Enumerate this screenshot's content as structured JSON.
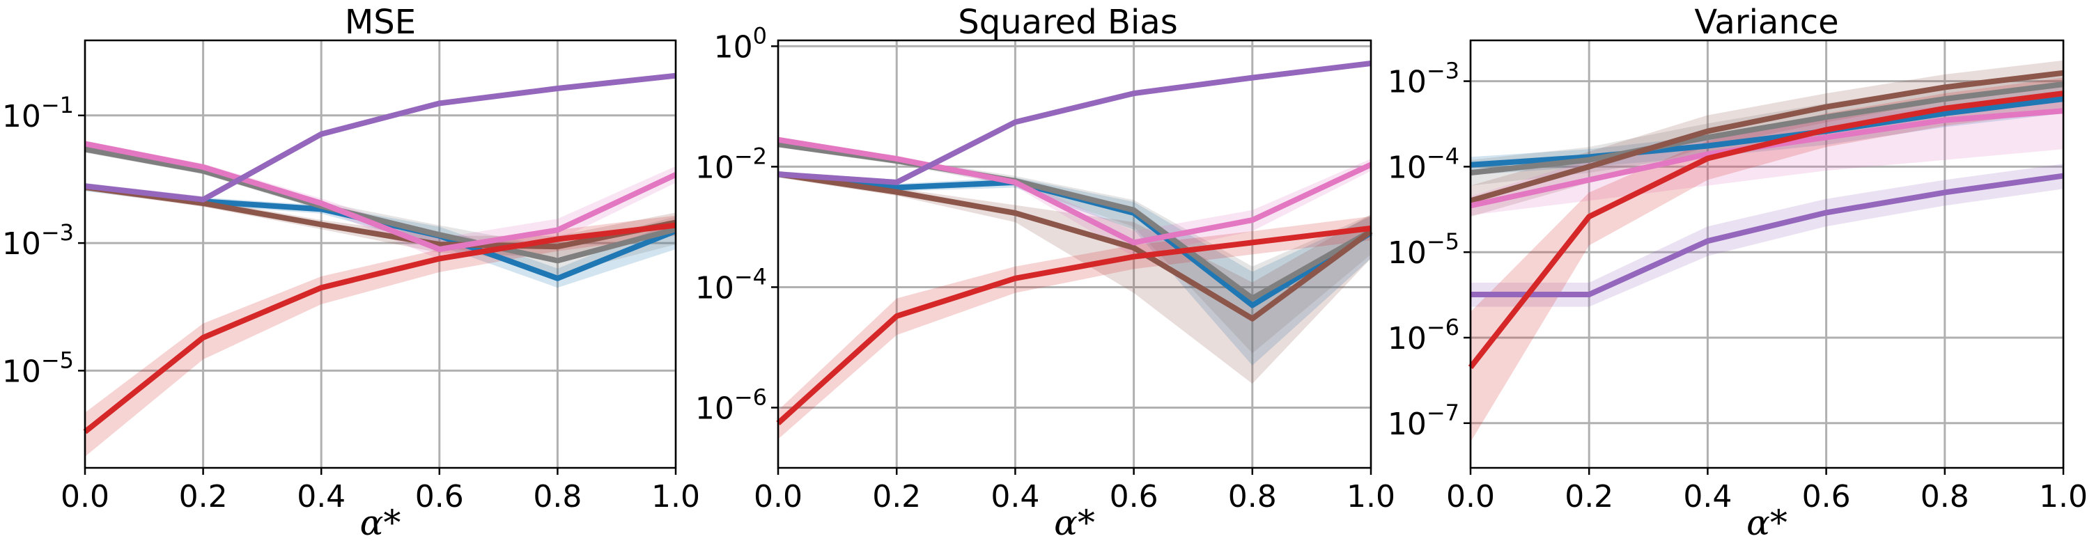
{
  "chart_data": [
    {
      "type": "line",
      "title": "MSE",
      "xlabel": "α*",
      "yscale": "log",
      "x": [
        0.0,
        0.2,
        0.4,
        0.6,
        0.8,
        1.0
      ],
      "xlim": [
        0.0,
        1.0
      ],
      "ylim": [
        3e-07,
        1.5
      ],
      "x_ticks": [
        "0.0",
        "0.2",
        "0.4",
        "0.6",
        "0.8",
        "1.0"
      ],
      "y_ticks": [
        {
          "value": 1e-05,
          "exp": "−5"
        },
        {
          "value": 0.001,
          "exp": "−3"
        },
        {
          "value": 0.1,
          "exp": "−1"
        }
      ],
      "grid": true,
      "series": [
        {
          "color": "#1f77b4",
          "values": [
            0.0075,
            0.0045,
            0.0034,
            0.0013,
            0.00028,
            0.00155
          ],
          "lower": [
            0.0065,
            0.0039,
            0.0029,
            0.0009,
            0.0002,
            0.0008
          ],
          "upper": [
            0.0087,
            0.0052,
            0.0039,
            0.0018,
            0.0004,
            0.0022
          ]
        },
        {
          "color": "#7f7f7f",
          "values": [
            0.0295,
            0.0135,
            0.0038,
            0.00135,
            0.00053,
            0.00165
          ],
          "lower": [
            0.026,
            0.012,
            0.0033,
            0.00095,
            0.00032,
            0.00095
          ],
          "upper": [
            0.034,
            0.0155,
            0.0044,
            0.0019,
            0.00085,
            0.0026
          ]
        },
        {
          "color": "#8c564b",
          "values": [
            0.0075,
            0.0042,
            0.00195,
            0.00095,
            0.00088,
            0.0021
          ],
          "lower": [
            0.0066,
            0.0037,
            0.00165,
            0.0007,
            0.0006,
            0.0014
          ],
          "upper": [
            0.0085,
            0.0048,
            0.0023,
            0.0013,
            0.0013,
            0.003
          ]
        },
        {
          "color": "#e377c2",
          "values": [
            0.036,
            0.0155,
            0.0042,
            0.0008,
            0.0016,
            0.0118
          ],
          "lower": [
            0.032,
            0.0135,
            0.0035,
            0.00055,
            0.0011,
            0.0088
          ],
          "upper": [
            0.04,
            0.0175,
            0.005,
            0.0012,
            0.0024,
            0.016
          ]
        },
        {
          "color": "#9467bd",
          "values": [
            0.0078,
            0.0048,
            0.051,
            0.155,
            0.265,
            0.42
          ],
          "lower": [
            0.007,
            0.0043,
            0.046,
            0.14,
            0.24,
            0.38
          ],
          "upper": [
            0.0087,
            0.0054,
            0.057,
            0.17,
            0.29,
            0.46
          ]
        },
        {
          "color": "#d62728",
          "values": [
            1.1e-06,
            3.3e-05,
            0.0002,
            0.00057,
            0.00115,
            0.0019
          ],
          "lower": [
            4.5e-07,
            1.5e-05,
            0.00011,
            0.00035,
            0.00075,
            0.0013
          ],
          "upper": [
            2.2e-06,
            5.5e-05,
            0.0003,
            0.0008,
            0.0016,
            0.0027
          ]
        }
      ]
    },
    {
      "type": "line",
      "title": "Squared Bias",
      "xlabel": "α*",
      "yscale": "log",
      "x": [
        0.0,
        0.2,
        0.4,
        0.6,
        0.8,
        1.0
      ],
      "xlim": [
        0.0,
        1.0
      ],
      "ylim": [
        1e-07,
        1.25
      ],
      "x_ticks": [
        "0.0",
        "0.2",
        "0.4",
        "0.6",
        "0.8",
        "1.0"
      ],
      "y_ticks": [
        {
          "value": 1e-06,
          "exp": "−6"
        },
        {
          "value": 0.0001,
          "exp": "−4"
        },
        {
          "value": 0.01,
          "exp": "−2"
        },
        {
          "value": 1,
          "exp": "0"
        }
      ],
      "grid": true,
      "series": [
        {
          "color": "#1f77b4",
          "values": [
            0.0075,
            0.0045,
            0.0055,
            0.0017,
            5e-05,
            0.0008
          ],
          "lower": [
            0.0066,
            0.0039,
            0.0045,
            0.0009,
            5e-06,
            0.0003
          ],
          "upper": [
            0.0085,
            0.0052,
            0.0066,
            0.0026,
            0.00018,
            0.0015
          ]
        },
        {
          "color": "#7f7f7f",
          "values": [
            0.0235,
            0.0125,
            0.0058,
            0.0019,
            6.5e-05,
            0.00085
          ],
          "lower": [
            0.021,
            0.011,
            0.0048,
            0.001,
            8e-06,
            0.00035
          ],
          "upper": [
            0.026,
            0.014,
            0.007,
            0.0028,
            0.00022,
            0.0016
          ]
        },
        {
          "color": "#8c564b",
          "values": [
            0.0075,
            0.0038,
            0.0017,
            0.00045,
            3e-05,
            0.00085
          ],
          "lower": [
            0.0066,
            0.0033,
            0.0012,
            8e-05,
            2.5e-06,
            0.0003
          ],
          "upper": [
            0.0085,
            0.0044,
            0.0023,
            0.0012,
            0.00012,
            0.0016
          ]
        },
        {
          "color": "#e377c2",
          "values": [
            0.028,
            0.0135,
            0.0055,
            0.00055,
            0.0013,
            0.0108
          ],
          "lower": [
            0.025,
            0.012,
            0.0047,
            0.00032,
            0.00085,
            0.0085
          ],
          "upper": [
            0.031,
            0.015,
            0.0064,
            0.00085,
            0.0019,
            0.0135
          ]
        },
        {
          "color": "#9467bd",
          "values": [
            0.0075,
            0.0055,
            0.055,
            0.165,
            0.3,
            0.52
          ],
          "lower": [
            0.0068,
            0.005,
            0.05,
            0.15,
            0.275,
            0.48
          ],
          "upper": [
            0.0083,
            0.006,
            0.06,
            0.18,
            0.33,
            0.56
          ]
        },
        {
          "color": "#d62728",
          "values": [
            5.5e-07,
            3.3e-05,
            0.00014,
            0.00032,
            0.00055,
            0.00095
          ],
          "lower": [
            3e-07,
            1.6e-05,
            8e-05,
            0.0002,
            0.00035,
            0.0006
          ],
          "upper": [
            9e-07,
            6.5e-05,
            0.00022,
            0.0005,
            0.00085,
            0.0015
          ]
        }
      ]
    },
    {
      "type": "line",
      "title": "Variance",
      "xlabel": "α*",
      "yscale": "log",
      "x": [
        0.0,
        0.2,
        0.4,
        0.6,
        0.8,
        1.0
      ],
      "xlim": [
        0.0,
        1.0
      ],
      "ylim": [
        3e-08,
        0.003
      ],
      "x_ticks": [
        "0.0",
        "0.2",
        "0.4",
        "0.6",
        "0.8",
        "1.0"
      ],
      "y_ticks": [
        {
          "value": 1e-07,
          "exp": "−7"
        },
        {
          "value": 1e-06,
          "exp": "−6"
        },
        {
          "value": 1e-05,
          "exp": "−5"
        },
        {
          "value": 0.0001,
          "exp": "−4"
        },
        {
          "value": 0.001,
          "exp": "−3"
        }
      ],
      "grid": true,
      "series": [
        {
          "color": "#1f77b4",
          "values": [
            0.000105,
            0.00013,
            0.000175,
            0.00026,
            0.00042,
            0.00062
          ],
          "lower": [
            8e-05,
            0.0001,
            0.00013,
            0.00018,
            0.00029,
            0.00042
          ],
          "upper": [
            0.00013,
            0.00016,
            0.00023,
            0.00037,
            0.0006,
            0.0009
          ]
        },
        {
          "color": "#7f7f7f",
          "values": [
            8.5e-05,
            0.00012,
            0.00022,
            0.00038,
            0.00062,
            0.00092
          ],
          "lower": [
            6e-05,
            8.5e-05,
            0.00014,
            0.00024,
            0.00042,
            0.00062
          ],
          "upper": [
            0.00012,
            0.00017,
            0.00032,
            0.00055,
            0.0009,
            0.0013
          ]
        },
        {
          "color": "#8c564b",
          "values": [
            4e-05,
            0.0001,
            0.00026,
            0.0005,
            0.00085,
            0.00125
          ],
          "lower": [
            2.6e-05,
            6.5e-05,
            0.00017,
            0.00033,
            0.00058,
            0.00085
          ],
          "upper": [
            6e-05,
            0.00015,
            0.0004,
            0.00072,
            0.0012,
            0.00175
          ]
        },
        {
          "color": "#e377c2",
          "values": [
            3.5e-05,
            7e-05,
            0.00014,
            0.00022,
            0.00035,
            0.00045
          ],
          "lower": [
            2.7e-05,
            4e-05,
            6e-05,
            9e-05,
            0.00012,
            0.00016
          ],
          "upper": [
            4.5e-05,
            0.00012,
            0.00022,
            0.00036,
            0.00052,
            0.00068
          ]
        },
        {
          "color": "#9467bd",
          "values": [
            3.2e-06,
            3.2e-06,
            1.35e-05,
            2.9e-05,
            5e-05,
            7.8e-05
          ],
          "lower": [
            2.3e-06,
            2.3e-06,
            9e-06,
            2e-05,
            3.5e-05,
            5.5e-05
          ],
          "upper": [
            4.4e-06,
            4.4e-06,
            2e-05,
            4.2e-05,
            7e-05,
            0.000108
          ]
        },
        {
          "color": "#d62728",
          "values": [
            4.5e-07,
            2.6e-05,
            0.000125,
            0.00027,
            0.00048,
            0.00072
          ],
          "lower": [
            6e-08,
            1.2e-05,
            7e-05,
            0.00017,
            0.0003,
            0.00045
          ],
          "upper": [
            2e-06,
            5e-05,
            0.0002,
            0.00042,
            0.00072,
            0.0011
          ]
        }
      ]
    }
  ]
}
